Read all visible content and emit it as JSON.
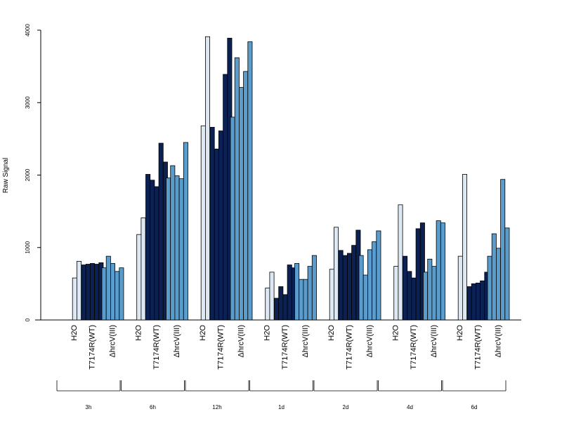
{
  "chart_data": {
    "type": "bar",
    "ylabel": "Raw Signal",
    "ylim": [
      0,
      4000
    ],
    "yticks": [
      0,
      1000,
      2000,
      3000,
      4000
    ],
    "grid": false,
    "categories": [
      "H2O",
      "T7174R(WT)",
      "ΔhrcV(III)"
    ],
    "category_colors": [
      "#dde8f3",
      "#0b2153",
      "#5a9ccc"
    ],
    "groups": [
      {
        "label": "3h",
        "bars": [
          [
            0,
            580,
            810
          ],
          [
            760,
            770,
            780,
            770,
            790
          ],
          [
            720,
            880,
            780,
            670,
            720
          ]
        ]
      },
      {
        "label": "6h",
        "bars": [
          [
            0,
            1180,
            1410
          ],
          [
            2010,
            1930,
            1840,
            2440,
            2180
          ],
          [
            1960,
            2130,
            1990,
            1950,
            2450
          ]
        ]
      },
      {
        "label": "12h",
        "bars": [
          [
            0,
            2680,
            3910
          ],
          [
            2660,
            2360,
            2610,
            3390,
            3890
          ],
          [
            2800,
            3620,
            3210,
            3430,
            3840
          ]
        ]
      },
      {
        "label": "1d",
        "bars": [
          [
            0,
            440,
            660
          ],
          [
            300,
            460,
            350,
            760,
            720
          ],
          [
            780,
            560,
            560,
            740,
            890
          ]
        ]
      },
      {
        "label": "2d",
        "bars": [
          [
            0,
            700,
            1280
          ],
          [
            960,
            890,
            920,
            1030,
            1240
          ],
          [
            890,
            620,
            970,
            1080,
            1230
          ]
        ]
      },
      {
        "label": "4d",
        "bars": [
          [
            0,
            740,
            1590
          ],
          [
            880,
            670,
            580,
            1260,
            1340
          ],
          [
            660,
            840,
            740,
            1370,
            1340
          ]
        ]
      },
      {
        "label": "6d",
        "bars": [
          [
            0,
            880,
            2010
          ],
          [
            460,
            500,
            510,
            540,
            660
          ],
          [
            880,
            1190,
            990,
            1940,
            1270
          ]
        ]
      }
    ]
  }
}
